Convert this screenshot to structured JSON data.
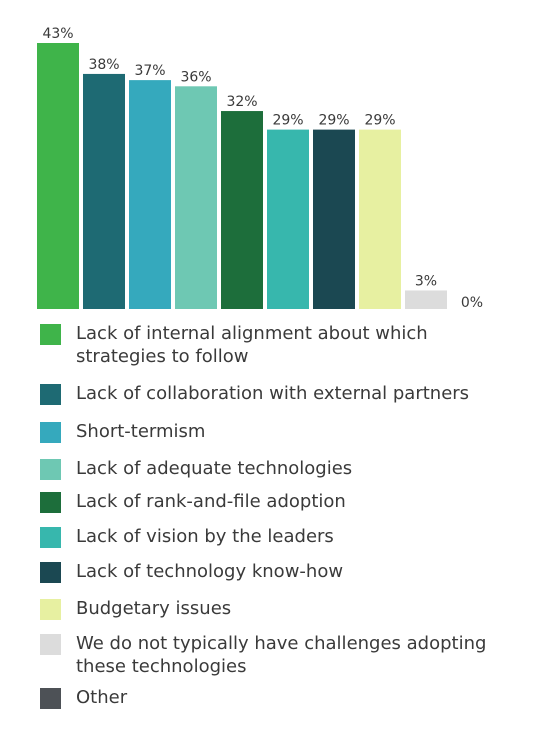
{
  "chart_data": {
    "type": "bar",
    "categories": [
      "Lack of internal alignment about which strategies to follow",
      "Lack of collaboration with external partners",
      "Short-termism",
      "Lack of adequate technologies",
      "Lack of rank-and-file adoption",
      "Lack of vision by the leaders",
      "Lack of technology know-how",
      "Budgetary issues",
      "We do not typically have challenges adopting these technologies",
      "Other"
    ],
    "values": [
      43,
      38,
      37,
      36,
      32,
      29,
      29,
      29,
      3,
      0
    ],
    "value_labels": [
      "43%",
      "38%",
      "37%",
      "36%",
      "32%",
      "29%",
      "29%",
      "29%",
      "3%",
      "0%"
    ],
    "colors": [
      "#3fb44a",
      "#1e6a73",
      "#35a9bd",
      "#6ec8b3",
      "#1d6e3b",
      "#37b7ad",
      "#1b4852",
      "#e7f0a1",
      "#dcdcdc",
      "#4d5156"
    ],
    "ylim": [
      0,
      43
    ],
    "legend": "bottom",
    "grid": false,
    "title": "",
    "xlabel": "",
    "ylabel": ""
  },
  "legend_items": [
    {
      "label": "Lack of internal alignment about which strategies to follow",
      "color": "#3fb44a"
    },
    {
      "label": "Lack of collaboration with external partners",
      "color": "#1e6a73"
    },
    {
      "label": "Short-termism",
      "color": "#35a9bd"
    },
    {
      "label": "Lack of adequate technologies",
      "color": "#6ec8b3"
    },
    {
      "label": "Lack of rank-and-file adoption",
      "color": "#1d6e3b"
    },
    {
      "label": "Lack of vision by the leaders",
      "color": "#37b7ad"
    },
    {
      "label": "Lack of technology know-how",
      "color": "#1b4852"
    },
    {
      "label": "Budgetary issues",
      "color": "#e7f0a1"
    },
    {
      "label": "We do not typically have challenges adopting these technologies",
      "color": "#dcdcdc"
    },
    {
      "label": "Other",
      "color": "#4d5156"
    }
  ]
}
